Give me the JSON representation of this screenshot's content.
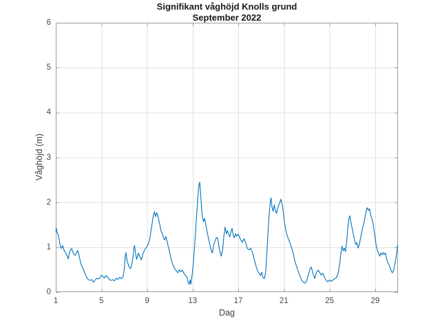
{
  "figure": {
    "title_line1": "Signifikant våghöjd Knolls grund",
    "title_line2": "September 2022",
    "background": "#ffffff"
  },
  "colors": {
    "line": "#0072BD",
    "grid": "#e0e0e0",
    "frame": "#9b9b9b",
    "tick_text": "#474747",
    "title_text": "#1a1a1a"
  },
  "chart_data": {
    "type": "line",
    "title": "Signifikant våghöjd Knolls grund",
    "subtitle": "September 2022",
    "xlabel": "Dag",
    "ylabel": "Våghöjd (m)",
    "xlim": [
      1,
      31
    ],
    "ylim": [
      0,
      6
    ],
    "xticks": [
      1,
      5,
      9,
      13,
      17,
      21,
      25,
      29
    ],
    "yticks": [
      0,
      1,
      2,
      3,
      4,
      5,
      6
    ],
    "grid": true,
    "legend": "none",
    "series": [
      {
        "name": "Signifikant våghöjd (m)",
        "points": [
          [
            1.0,
            1.36
          ],
          [
            1.05,
            1.42
          ],
          [
            1.1,
            1.33
          ],
          [
            1.2,
            1.28
          ],
          [
            1.3,
            1.17
          ],
          [
            1.4,
            1.02
          ],
          [
            1.5,
            0.97
          ],
          [
            1.6,
            1.04
          ],
          [
            1.7,
            0.95
          ],
          [
            1.8,
            0.9
          ],
          [
            1.9,
            0.86
          ],
          [
            2.0,
            0.8
          ],
          [
            2.1,
            0.74
          ],
          [
            2.2,
            0.88
          ],
          [
            2.3,
            0.94
          ],
          [
            2.4,
            0.97
          ],
          [
            2.5,
            0.89
          ],
          [
            2.6,
            0.84
          ],
          [
            2.7,
            0.82
          ],
          [
            2.8,
            0.86
          ],
          [
            2.9,
            0.93
          ],
          [
            3.0,
            0.87
          ],
          [
            3.1,
            0.74
          ],
          [
            3.25,
            0.6
          ],
          [
            3.4,
            0.52
          ],
          [
            3.55,
            0.42
          ],
          [
            3.7,
            0.33
          ],
          [
            3.85,
            0.28
          ],
          [
            4.0,
            0.26
          ],
          [
            4.15,
            0.28
          ],
          [
            4.3,
            0.22
          ],
          [
            4.45,
            0.27
          ],
          [
            4.6,
            0.31
          ],
          [
            4.75,
            0.29
          ],
          [
            4.9,
            0.33
          ],
          [
            5.0,
            0.38
          ],
          [
            5.1,
            0.36
          ],
          [
            5.25,
            0.31
          ],
          [
            5.4,
            0.37
          ],
          [
            5.55,
            0.33
          ],
          [
            5.7,
            0.28
          ],
          [
            5.85,
            0.26
          ],
          [
            6.0,
            0.28
          ],
          [
            6.15,
            0.25
          ],
          [
            6.3,
            0.31
          ],
          [
            6.45,
            0.28
          ],
          [
            6.6,
            0.33
          ],
          [
            6.75,
            0.3
          ],
          [
            6.9,
            0.34
          ],
          [
            7.0,
            0.5
          ],
          [
            7.1,
            0.82
          ],
          [
            7.15,
            0.88
          ],
          [
            7.25,
            0.7
          ],
          [
            7.4,
            0.58
          ],
          [
            7.55,
            0.52
          ],
          [
            7.7,
            0.65
          ],
          [
            7.85,
            0.98
          ],
          [
            7.9,
            1.04
          ],
          [
            8.0,
            0.85
          ],
          [
            8.1,
            0.73
          ],
          [
            8.25,
            0.87
          ],
          [
            8.4,
            0.77
          ],
          [
            8.5,
            0.72
          ],
          [
            8.65,
            0.86
          ],
          [
            8.8,
            0.95
          ],
          [
            8.95,
            1.0
          ],
          [
            9.1,
            1.06
          ],
          [
            9.25,
            1.2
          ],
          [
            9.4,
            1.45
          ],
          [
            9.55,
            1.7
          ],
          [
            9.65,
            1.79
          ],
          [
            9.75,
            1.68
          ],
          [
            9.85,
            1.77
          ],
          [
            9.95,
            1.7
          ],
          [
            10.05,
            1.58
          ],
          [
            10.15,
            1.46
          ],
          [
            10.25,
            1.34
          ],
          [
            10.35,
            1.3
          ],
          [
            10.45,
            1.2
          ],
          [
            10.55,
            1.16
          ],
          [
            10.65,
            1.24
          ],
          [
            10.8,
            1.08
          ],
          [
            10.95,
            0.92
          ],
          [
            11.1,
            0.75
          ],
          [
            11.25,
            0.62
          ],
          [
            11.4,
            0.53
          ],
          [
            11.55,
            0.48
          ],
          [
            11.7,
            0.43
          ],
          [
            11.85,
            0.5
          ],
          [
            11.95,
            0.45
          ],
          [
            12.1,
            0.49
          ],
          [
            12.2,
            0.43
          ],
          [
            12.35,
            0.38
          ],
          [
            12.5,
            0.33
          ],
          [
            12.6,
            0.23
          ],
          [
            12.7,
            0.17
          ],
          [
            12.78,
            0.27
          ],
          [
            12.85,
            0.18
          ],
          [
            12.95,
            0.38
          ],
          [
            13.05,
            0.62
          ],
          [
            13.15,
            0.95
          ],
          [
            13.25,
            1.32
          ],
          [
            13.35,
            1.72
          ],
          [
            13.45,
            2.08
          ],
          [
            13.55,
            2.38
          ],
          [
            13.62,
            2.45
          ],
          [
            13.7,
            2.18
          ],
          [
            13.78,
            1.88
          ],
          [
            13.85,
            1.67
          ],
          [
            13.95,
            1.57
          ],
          [
            14.05,
            1.64
          ],
          [
            14.15,
            1.5
          ],
          [
            14.3,
            1.3
          ],
          [
            14.45,
            1.12
          ],
          [
            14.6,
            0.95
          ],
          [
            14.72,
            0.87
          ],
          [
            14.85,
            1.06
          ],
          [
            15.0,
            1.17
          ],
          [
            15.1,
            1.22
          ],
          [
            15.2,
            1.18
          ],
          [
            15.35,
            0.95
          ],
          [
            15.5,
            0.8
          ],
          [
            15.62,
            0.93
          ],
          [
            15.75,
            1.28
          ],
          [
            15.85,
            1.45
          ],
          [
            15.95,
            1.3
          ],
          [
            16.05,
            1.37
          ],
          [
            16.15,
            1.29
          ],
          [
            16.25,
            1.23
          ],
          [
            16.35,
            1.34
          ],
          [
            16.45,
            1.42
          ],
          [
            16.55,
            1.27
          ],
          [
            16.65,
            1.21
          ],
          [
            16.75,
            1.3
          ],
          [
            16.85,
            1.24
          ],
          [
            16.95,
            1.29
          ],
          [
            17.05,
            1.26
          ],
          [
            17.2,
            1.17
          ],
          [
            17.35,
            1.11
          ],
          [
            17.5,
            1.19
          ],
          [
            17.65,
            1.09
          ],
          [
            17.8,
            0.97
          ],
          [
            17.95,
            0.94
          ],
          [
            18.1,
            0.98
          ],
          [
            18.25,
            0.88
          ],
          [
            18.4,
            0.73
          ],
          [
            18.55,
            0.58
          ],
          [
            18.7,
            0.47
          ],
          [
            18.85,
            0.41
          ],
          [
            18.95,
            0.37
          ],
          [
            19.05,
            0.44
          ],
          [
            19.15,
            0.33
          ],
          [
            19.28,
            0.3
          ],
          [
            19.4,
            0.44
          ],
          [
            19.5,
            0.85
          ],
          [
            19.6,
            1.3
          ],
          [
            19.7,
            1.72
          ],
          [
            19.8,
            2.0
          ],
          [
            19.87,
            2.1
          ],
          [
            19.95,
            1.9
          ],
          [
            20.05,
            1.8
          ],
          [
            20.15,
            1.94
          ],
          [
            20.25,
            1.82
          ],
          [
            20.35,
            1.75
          ],
          [
            20.45,
            1.87
          ],
          [
            20.55,
            1.94
          ],
          [
            20.65,
            2.0
          ],
          [
            20.73,
            2.07
          ],
          [
            20.85,
            1.95
          ],
          [
            20.95,
            1.78
          ],
          [
            21.05,
            1.55
          ],
          [
            21.15,
            1.4
          ],
          [
            21.25,
            1.28
          ],
          [
            21.4,
            1.18
          ],
          [
            21.5,
            1.12
          ],
          [
            21.65,
            1.0
          ],
          [
            21.8,
            0.88
          ],
          [
            21.95,
            0.7
          ],
          [
            22.1,
            0.58
          ],
          [
            22.25,
            0.46
          ],
          [
            22.4,
            0.36
          ],
          [
            22.55,
            0.27
          ],
          [
            22.7,
            0.22
          ],
          [
            22.85,
            0.2
          ],
          [
            23.0,
            0.25
          ],
          [
            23.15,
            0.4
          ],
          [
            23.3,
            0.52
          ],
          [
            23.4,
            0.56
          ],
          [
            23.55,
            0.41
          ],
          [
            23.7,
            0.3
          ],
          [
            23.85,
            0.44
          ],
          [
            24.0,
            0.49
          ],
          [
            24.1,
            0.45
          ],
          [
            24.25,
            0.38
          ],
          [
            24.4,
            0.42
          ],
          [
            24.55,
            0.34
          ],
          [
            24.7,
            0.26
          ],
          [
            24.85,
            0.23
          ],
          [
            25.0,
            0.27
          ],
          [
            25.15,
            0.24
          ],
          [
            25.3,
            0.27
          ],
          [
            25.45,
            0.3
          ],
          [
            25.6,
            0.32
          ],
          [
            25.75,
            0.42
          ],
          [
            25.9,
            0.65
          ],
          [
            26.0,
            0.88
          ],
          [
            26.1,
            1.02
          ],
          [
            26.2,
            0.92
          ],
          [
            26.3,
            0.98
          ],
          [
            26.4,
            0.9
          ],
          [
            26.5,
            1.12
          ],
          [
            26.6,
            1.42
          ],
          [
            26.7,
            1.65
          ],
          [
            26.78,
            1.7
          ],
          [
            26.88,
            1.55
          ],
          [
            26.98,
            1.42
          ],
          [
            27.08,
            1.3
          ],
          [
            27.2,
            1.15
          ],
          [
            27.3,
            1.06
          ],
          [
            27.4,
            1.1
          ],
          [
            27.5,
            0.98
          ],
          [
            27.6,
            1.05
          ],
          [
            27.7,
            1.18
          ],
          [
            27.8,
            1.3
          ],
          [
            27.9,
            1.44
          ],
          [
            28.0,
            1.52
          ],
          [
            28.1,
            1.65
          ],
          [
            28.2,
            1.8
          ],
          [
            28.3,
            1.88
          ],
          [
            28.4,
            1.82
          ],
          [
            28.5,
            1.86
          ],
          [
            28.6,
            1.72
          ],
          [
            28.7,
            1.64
          ],
          [
            28.8,
            1.55
          ],
          [
            28.9,
            1.38
          ],
          [
            29.0,
            1.2
          ],
          [
            29.1,
            1.02
          ],
          [
            29.2,
            0.93
          ],
          [
            29.3,
            0.86
          ],
          [
            29.4,
            0.8
          ],
          [
            29.5,
            0.87
          ],
          [
            29.6,
            0.83
          ],
          [
            29.7,
            0.88
          ],
          [
            29.8,
            0.84
          ],
          [
            29.9,
            0.87
          ],
          [
            30.0,
            0.74
          ],
          [
            30.1,
            0.66
          ],
          [
            30.2,
            0.62
          ],
          [
            30.3,
            0.55
          ],
          [
            30.4,
            0.48
          ],
          [
            30.5,
            0.43
          ],
          [
            30.6,
            0.47
          ],
          [
            30.7,
            0.58
          ],
          [
            30.8,
            0.72
          ],
          [
            30.9,
            0.9
          ],
          [
            30.97,
            1.05
          ]
        ]
      }
    ]
  }
}
